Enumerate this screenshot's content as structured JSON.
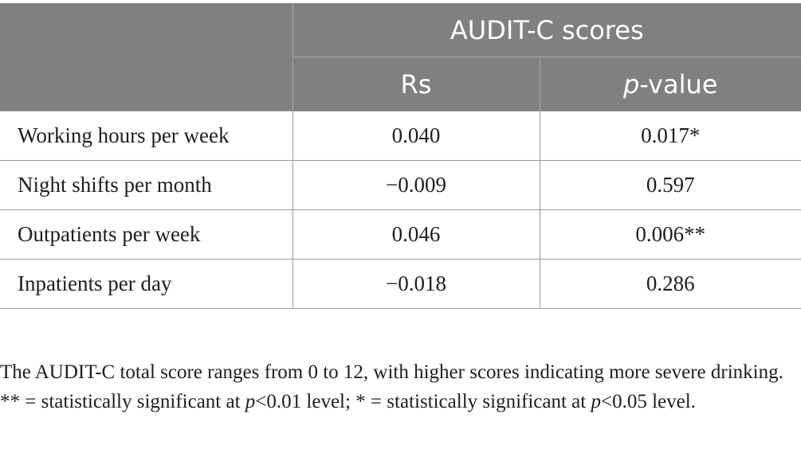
{
  "table": {
    "group_header": "AUDIT-C scores",
    "col_rs": "Rs",
    "col_p_italic": "p",
    "col_p_rest": "-value",
    "rows": [
      {
        "label": "Working hours per week",
        "rs": "0.040",
        "p": "0.017*"
      },
      {
        "label": "Night shifts per month",
        "rs": "−0.009",
        "p": "0.597"
      },
      {
        "label": "Outpatients per week",
        "rs": "0.046",
        "p": "0.006**"
      },
      {
        "label": "Inpatients per day",
        "rs": "−0.018",
        "p": "0.286"
      }
    ]
  },
  "footnotes": {
    "note1": "The AUDIT-C total score ranges from 0 to 12, with higher scores indicating more severe drinking.",
    "note2_part1": "** = statistically significant at ",
    "note2_p1": "p",
    "note2_part2": "<0.01 level; * = statistically significant at ",
    "note2_p2": "p",
    "note2_part3": "<0.05 level."
  },
  "colors": {
    "header_bg": "#808080",
    "header_text": "#ffffff",
    "rule": "#9a9a9a"
  }
}
